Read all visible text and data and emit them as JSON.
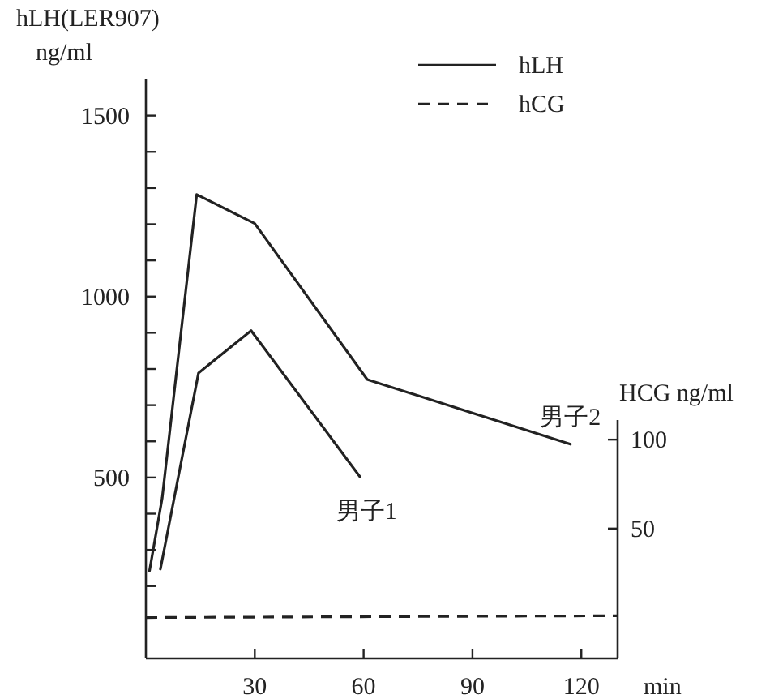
{
  "chart_data": {
    "type": "line",
    "ylabel": "hLH(LER907)\nng/ml",
    "y2label": "HCG ng/ml",
    "xlabel": "min",
    "xlim": [
      0,
      130
    ],
    "xticks": [
      30,
      60,
      90,
      120
    ],
    "ylim": [
      0,
      1600
    ],
    "yticks": [
      {
        "value": 200,
        "label": null
      },
      {
        "value": 300,
        "label": null
      },
      {
        "value": 400,
        "label": null
      },
      500,
      {
        "value": 600,
        "label": null
      },
      {
        "value": 700,
        "label": null
      },
      {
        "value": 800,
        "label": null
      },
      {
        "value": 900,
        "label": null
      },
      1000,
      {
        "value": 1100,
        "label": null
      },
      {
        "value": 1200,
        "label": null
      },
      {
        "value": 1300,
        "label": null
      },
      {
        "value": 1400,
        "label": null
      },
      1500
    ],
    "y2lim": [
      -23,
      111
    ],
    "y2ticks": [
      50,
      100
    ],
    "legend": "top right",
    "grid": false,
    "marker": "none",
    "series": [
      {
        "name": "hLH",
        "color": "#222222",
        "line_style": "solid",
        "x": [
          4,
          14.5,
          29,
          59
        ],
        "values": [
          247,
          789,
          906,
          502
        ]
      },
      {
        "color": "#222222",
        "line_style": "solid",
        "x": [
          1,
          4.5,
          14,
          30,
          61,
          117
        ],
        "values": [
          242,
          444,
          1282,
          1202,
          771,
          592
        ]
      },
      {
        "name": "hCG",
        "color": "#222222",
        "line_style": "dashed",
        "axis": "y2",
        "x": [
          0,
          130
        ],
        "values": [
          0,
          1
        ]
      }
    ],
    "annotations": [
      {
        "text": "男子1",
        "x": 59,
        "y": 502
      },
      {
        "text": "男子2",
        "x": 117,
        "y": 592
      }
    ]
  }
}
